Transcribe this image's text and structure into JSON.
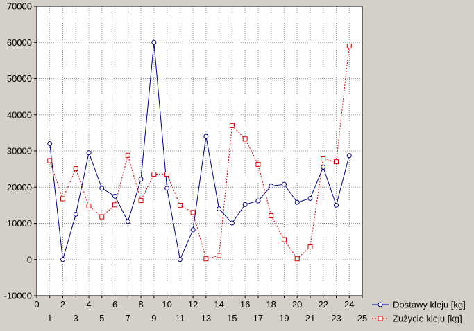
{
  "chart_data": {
    "type": "line",
    "title": "",
    "xlabel": "",
    "ylabel": "",
    "x": [
      1,
      2,
      3,
      4,
      5,
      6,
      7,
      8,
      9,
      10,
      11,
      12,
      13,
      14,
      15,
      16,
      17,
      18,
      19,
      20,
      21,
      22,
      23,
      24
    ],
    "xlim": [
      0,
      25
    ],
    "ylim": [
      -10000,
      70000
    ],
    "x_ticks_top_row": [
      "0",
      "2",
      "4",
      "6",
      "8",
      "10",
      "12",
      "14",
      "16",
      "18",
      "20",
      "22",
      "24"
    ],
    "x_ticks_bottom_row": [
      "1",
      "3",
      "5",
      "7",
      "9",
      "11",
      "13",
      "15",
      "17",
      "19",
      "21",
      "23",
      "25"
    ],
    "y_ticks": [
      "-10000",
      "0",
      "10000",
      "20000",
      "30000",
      "40000",
      "50000",
      "60000",
      "70000"
    ],
    "grid": true,
    "legend_position": "bottom-right",
    "series": [
      {
        "name": "Dostawy kleju [kg]",
        "color": "#000080",
        "marker": "circle",
        "line_style": "solid",
        "values": [
          32000,
          0,
          12500,
          29500,
          19700,
          17500,
          10500,
          22200,
          60000,
          19700,
          0,
          8200,
          34000,
          14000,
          10100,
          15200,
          16200,
          20300,
          20800,
          15800,
          16900,
          25500,
          15000,
          28700
        ]
      },
      {
        "name": "Zużycie kleju [kg]",
        "color": "#cc0000",
        "marker": "square",
        "line_style": "dashed",
        "values": [
          27300,
          16800,
          25100,
          14800,
          11800,
          15100,
          28800,
          16300,
          23600,
          23600,
          15000,
          13000,
          200,
          1100,
          37000,
          33300,
          26300,
          12100,
          5500,
          200,
          3500,
          27800,
          27000,
          59000
        ]
      }
    ]
  }
}
